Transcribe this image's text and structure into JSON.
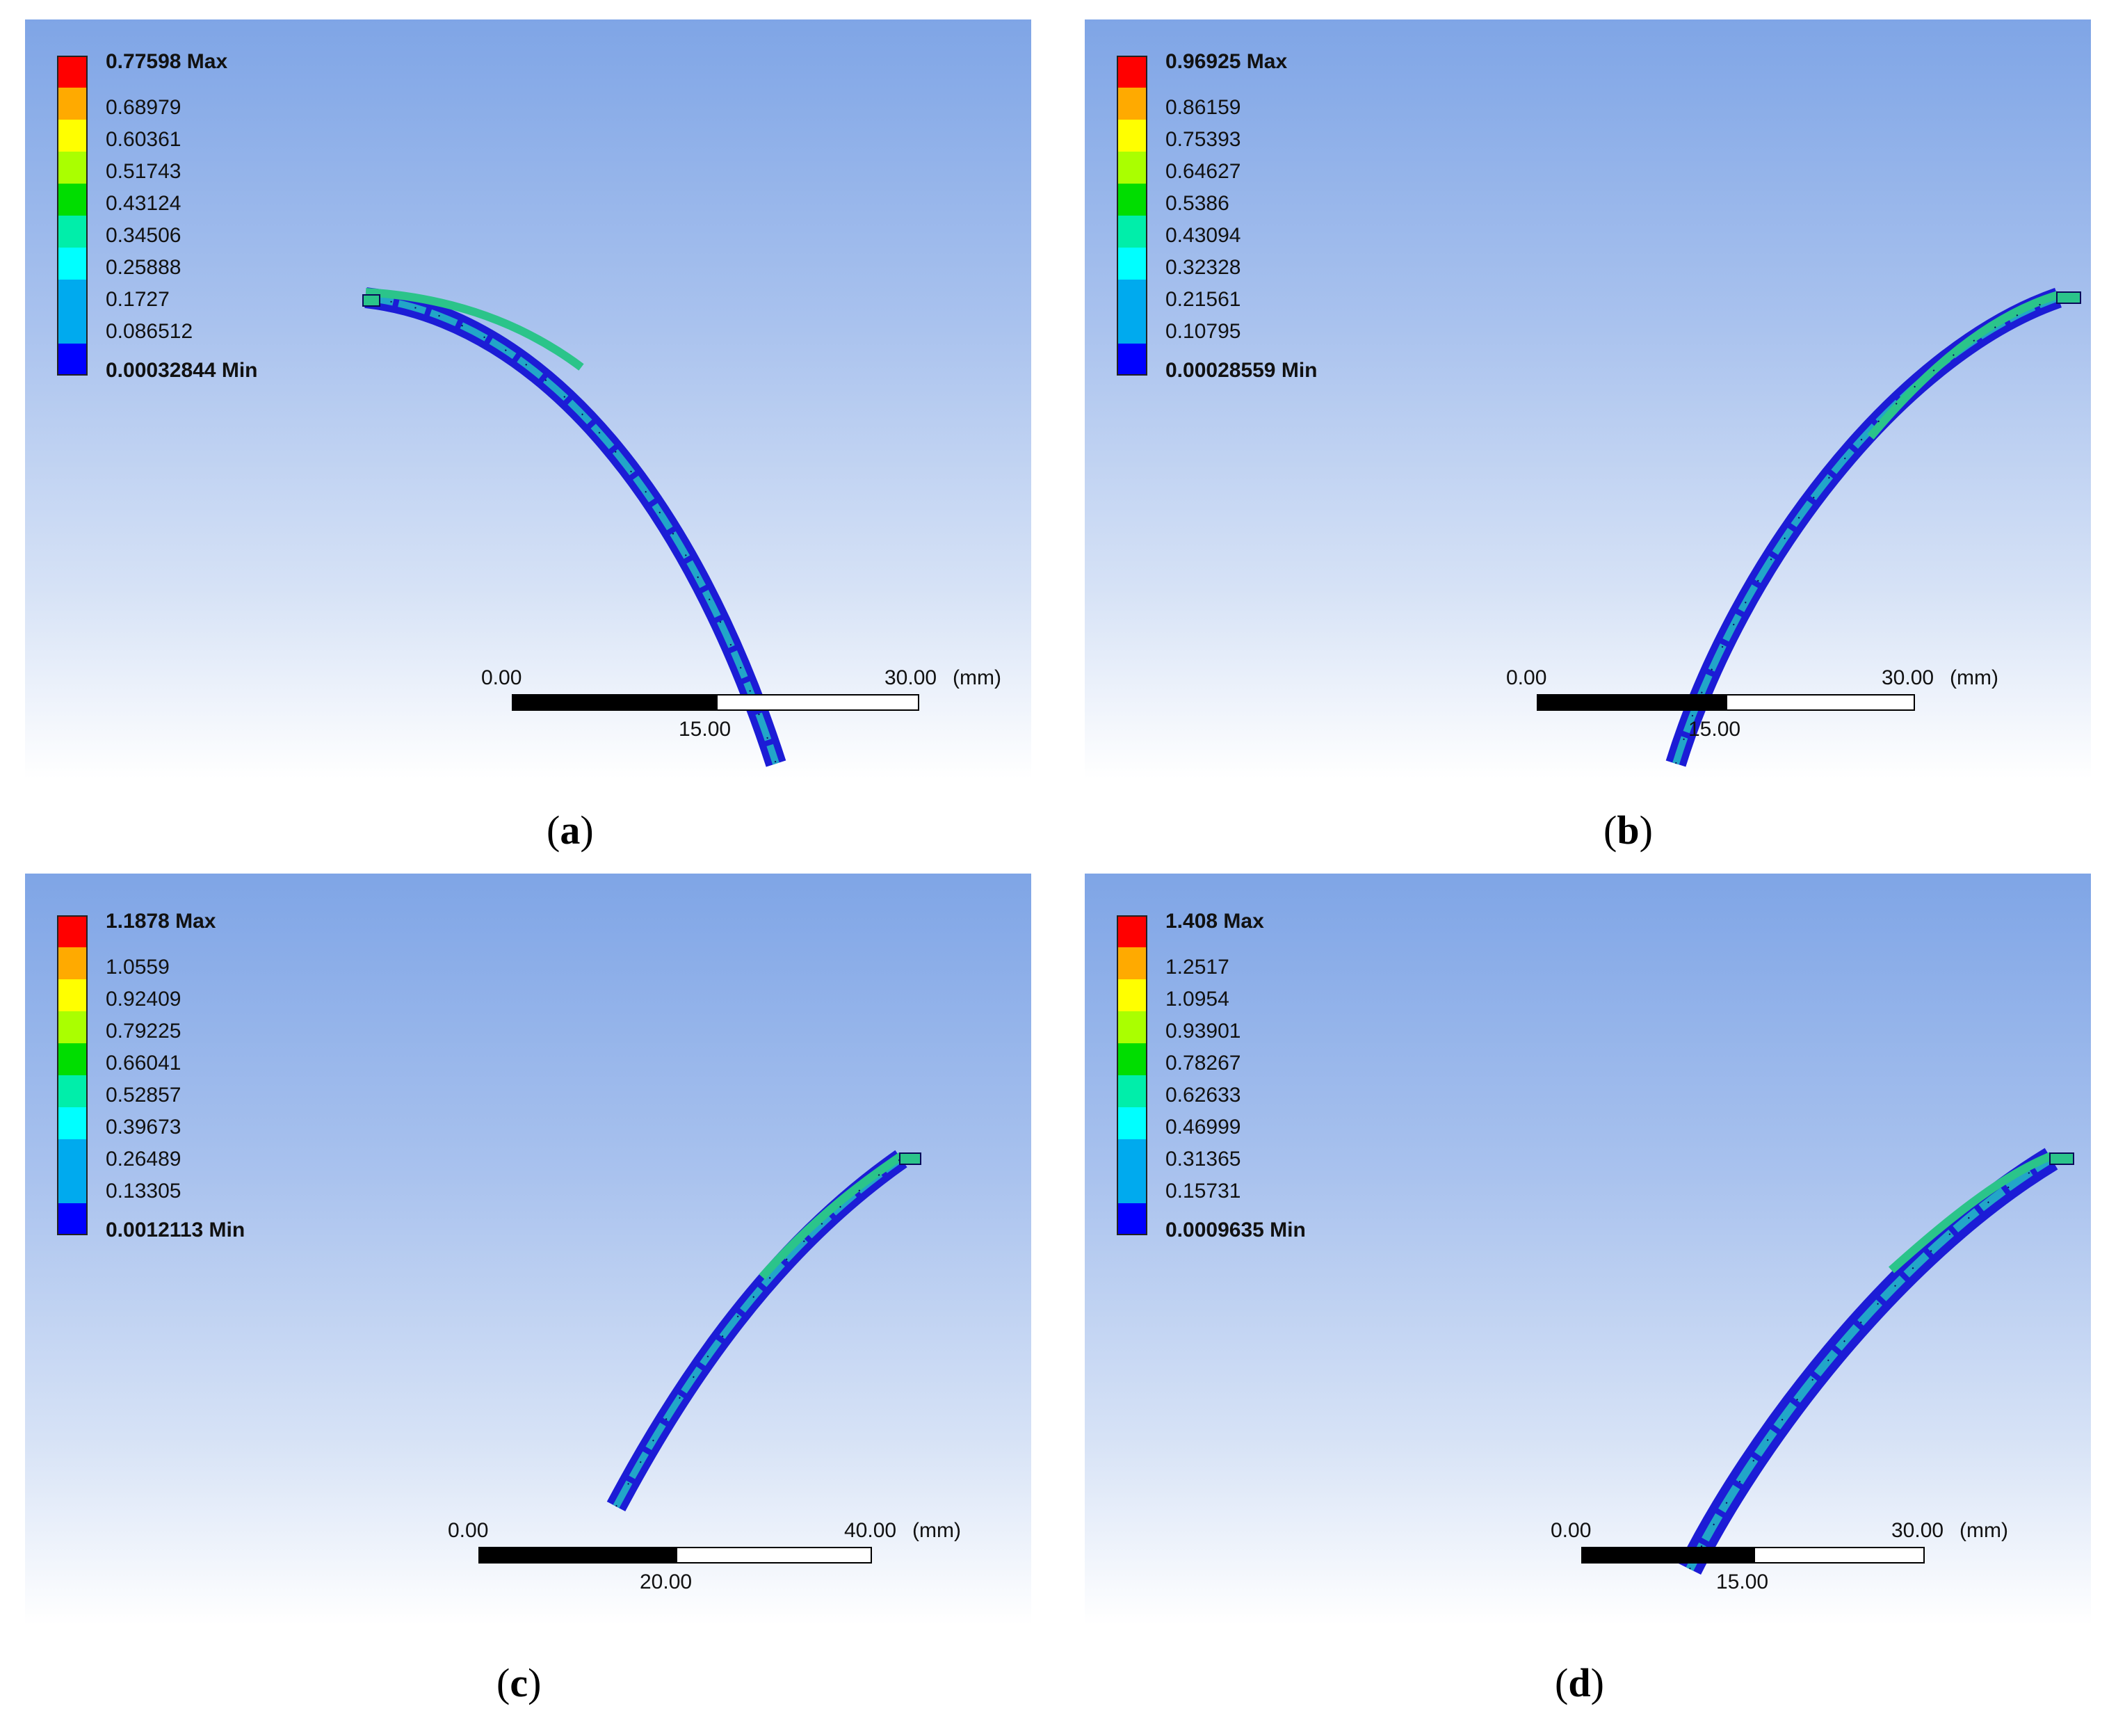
{
  "panels": [
    {
      "id": "a",
      "legend": {
        "max_label": "0.77598 Max",
        "values": [
          "0.68979",
          "0.60361",
          "0.51743",
          "0.43124",
          "0.34506",
          "0.25888",
          "0.1727",
          "0.086512"
        ],
        "min_label": "0.00032844 Min"
      },
      "scale": {
        "start": "0.00",
        "end": "30.00",
        "unit": "(mm)",
        "mid": "15.00"
      },
      "caption": "a"
    },
    {
      "id": "b",
      "legend": {
        "max_label": "0.96925 Max",
        "values": [
          "0.86159",
          "0.75393",
          "0.64627",
          "0.5386",
          "0.43094",
          "0.32328",
          "0.21561",
          "0.10795"
        ],
        "min_label": "0.00028559 Min"
      },
      "scale": {
        "start": "0.00",
        "end": "30.00",
        "unit": "(mm)",
        "mid": "15.00"
      },
      "caption": "b"
    },
    {
      "id": "c",
      "legend": {
        "max_label": "1.1878 Max",
        "values": [
          "1.0559",
          "0.92409",
          "0.79225",
          "0.66041",
          "0.52857",
          "0.39673",
          "0.26489",
          "0.13305"
        ],
        "min_label": "0.0012113 Min"
      },
      "scale": {
        "start": "0.00",
        "end": "40.00",
        "unit": "(mm)",
        "mid": "20.00"
      },
      "caption": "c"
    },
    {
      "id": "d",
      "legend": {
        "max_label": "1.408 Max",
        "values": [
          "1.2517",
          "1.0954",
          "0.93901",
          "0.78267",
          "0.62633",
          "0.46999",
          "0.31365",
          "0.15731"
        ],
        "min_label": "0.0009635 Min"
      },
      "scale": {
        "start": "0.00",
        "end": "30.00",
        "unit": "(mm)",
        "mid": "15.00"
      },
      "caption": "d"
    }
  ],
  "colors": {
    "legend_bands": [
      "#ff0000",
      "#ffaa00",
      "#ffff00",
      "#aaff00",
      "#00dd00",
      "#00eeaa",
      "#00ffff",
      "#00aaee",
      "#0000ff"
    ],
    "beam_dark": "#1c1cd6",
    "beam_mid": "#22a6c8",
    "beam_tip": "#2bc48a"
  }
}
